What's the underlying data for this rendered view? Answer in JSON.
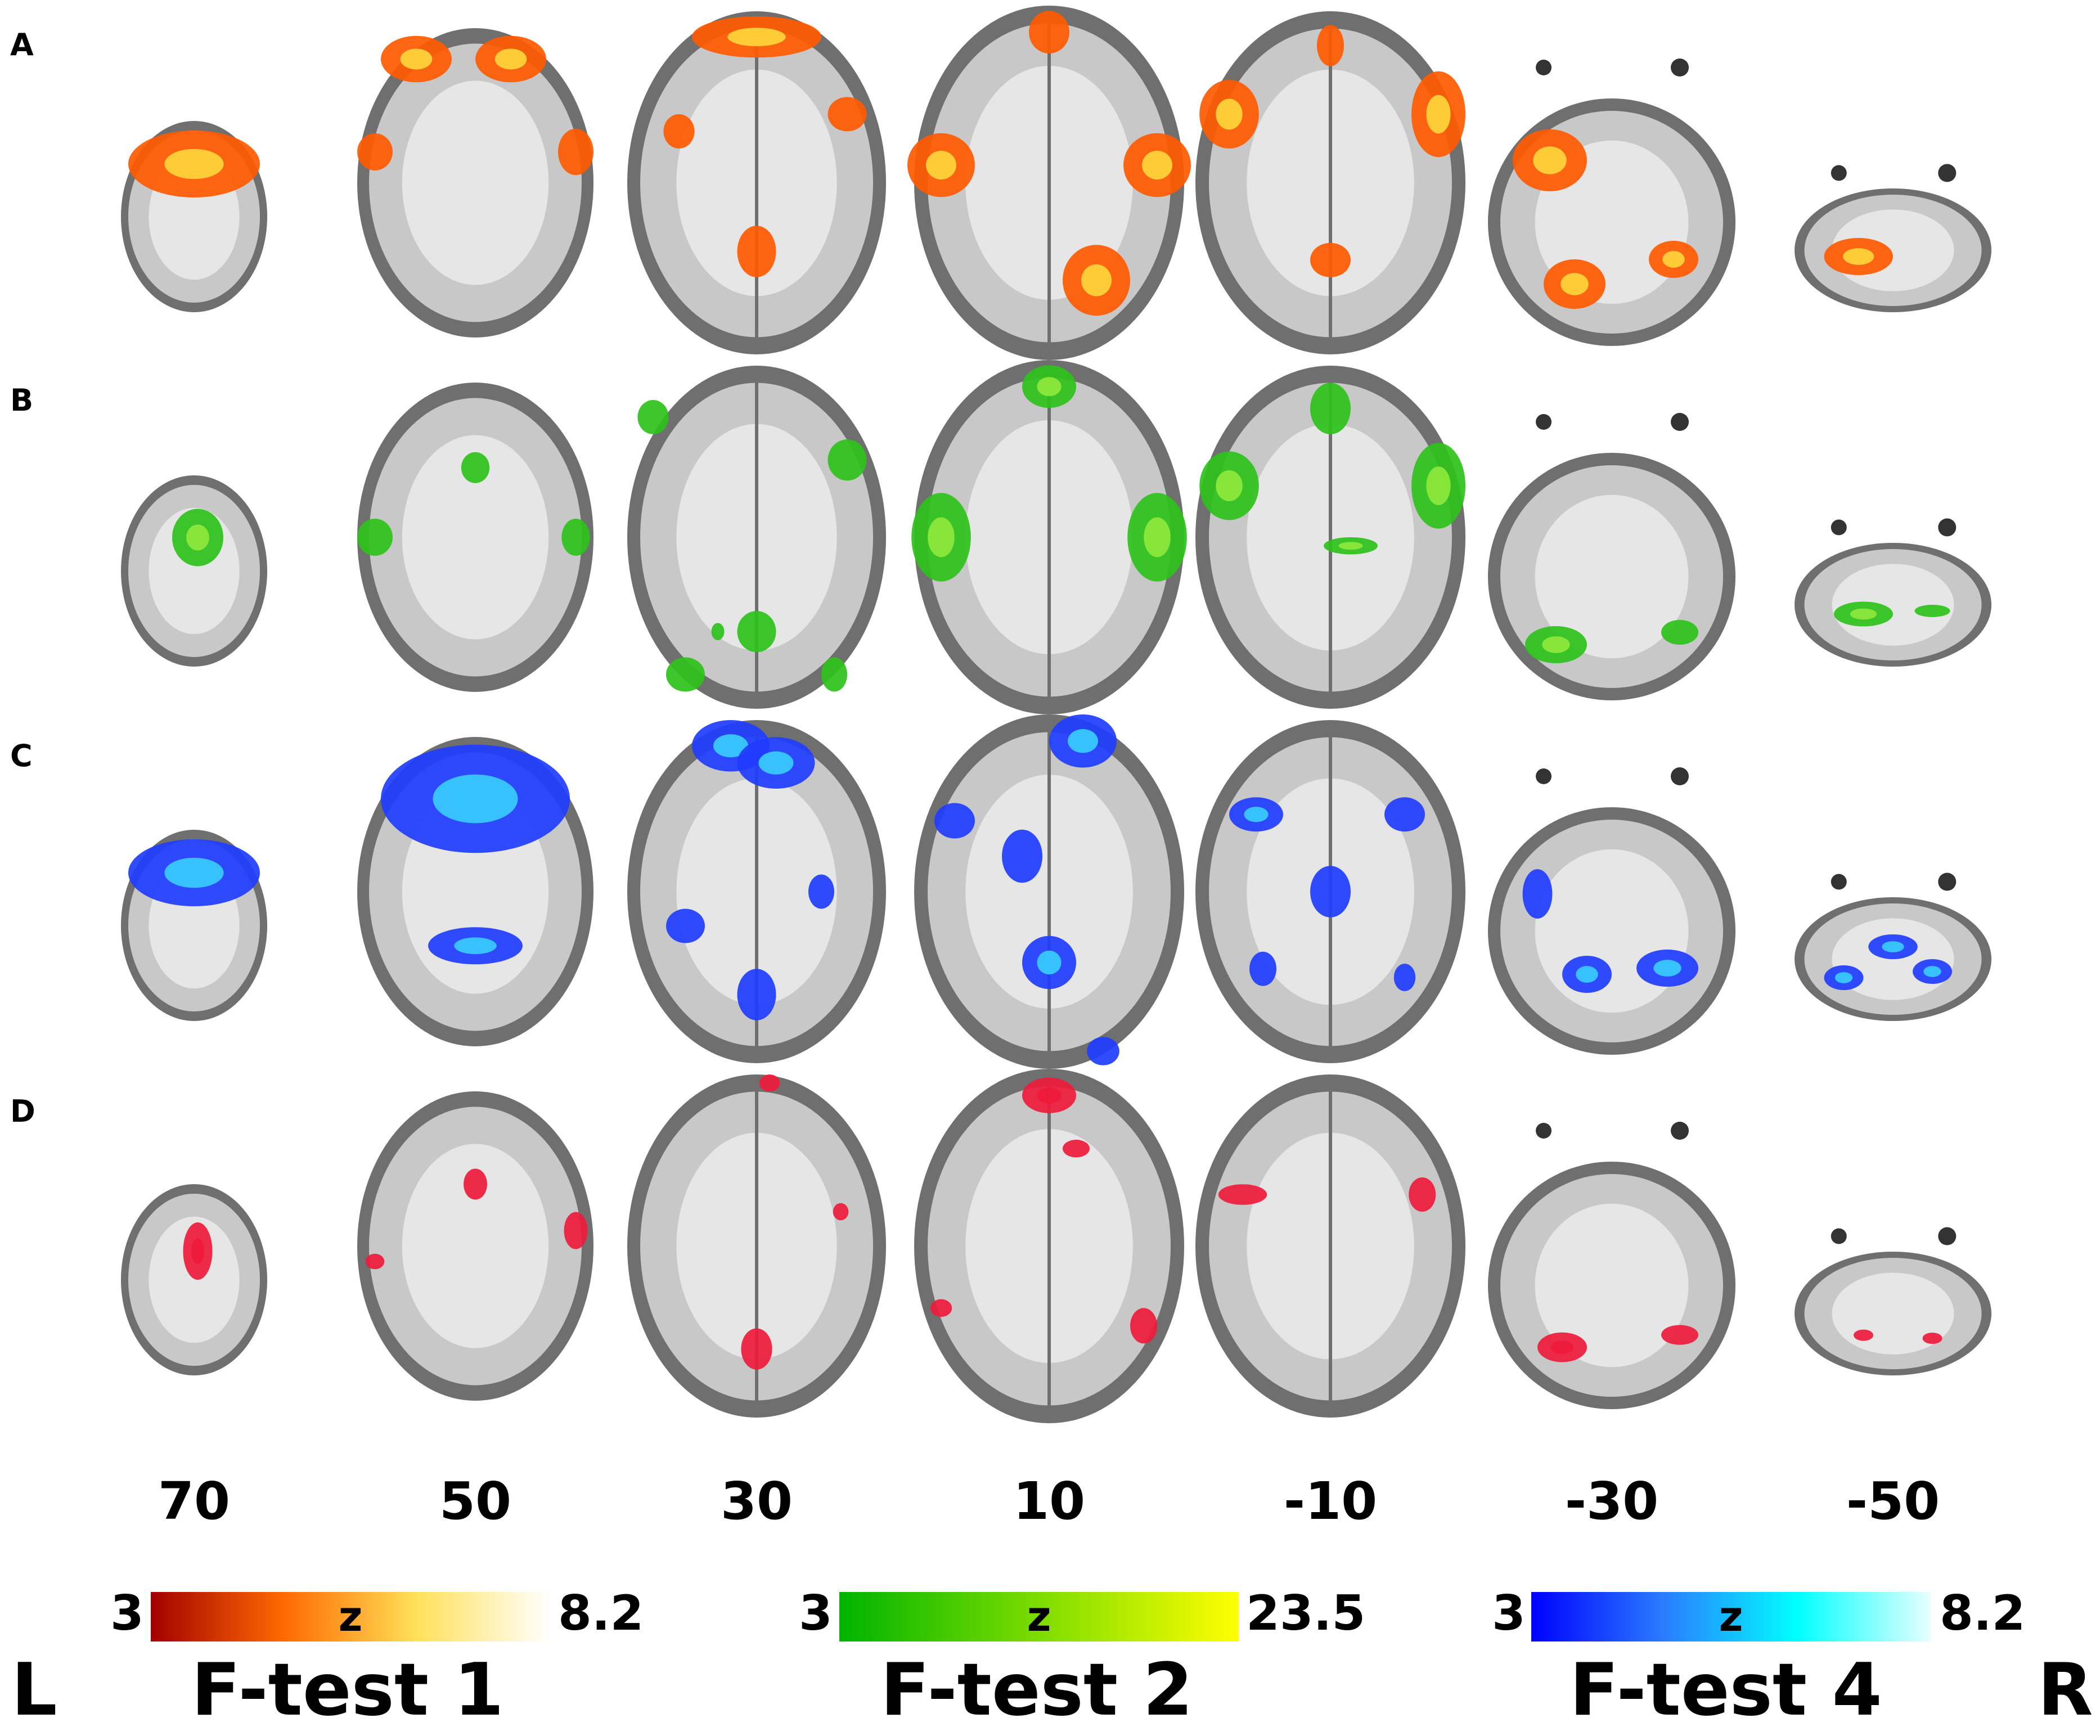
{
  "rows": [
    {
      "letter": "A",
      "overlay": "#ff5a00",
      "hot": "#ffd23a"
    },
    {
      "letter": "B",
      "overlay": "#2ec21a",
      "hot": "#8be83a"
    },
    {
      "letter": "C",
      "overlay": "#1f3dff",
      "hot": "#38c8ff"
    },
    {
      "letter": "D",
      "overlay": "#ee1a3a",
      "hot": "#ee1a3a"
    }
  ],
  "slices": [
    "70",
    "50",
    "30",
    "10",
    "-10",
    "-30",
    "-50"
  ],
  "colorbars": [
    {
      "min": "3",
      "max": "8.2",
      "z": "z",
      "colors": [
        "#a30000",
        "#ff6a00",
        "#ffe15a",
        "#ffffff"
      ]
    },
    {
      "min": "3",
      "max": "23.5",
      "z": "z",
      "colors": [
        "#00b400",
        "#7ddc00",
        "#ffff00"
      ]
    },
    {
      "min": "3",
      "max": "8.2",
      "z": "z",
      "colors": [
        "#0000ff",
        "#2a7dff",
        "#00ffff",
        "#e8ffff"
      ]
    }
  ],
  "tests": [
    "F-test 1",
    "F-test 2",
    "F-test 4"
  ],
  "sides": {
    "left": "L",
    "right": "R"
  },
  "colors": {
    "brain_outer": "#6f6f6f",
    "brain_inner": "#c8c8c8",
    "white_matter": "#e6e6e6"
  }
}
